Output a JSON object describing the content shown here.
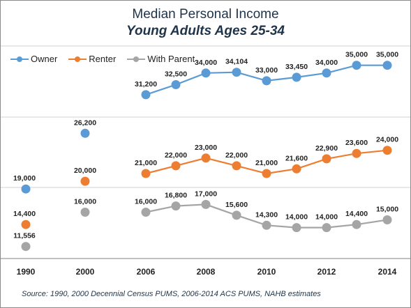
{
  "title": "Median Personal Income",
  "subtitle": "Young Adults Ages 25-34",
  "source": "Source: 1990, 2000 Decennial Census PUMS, 2006-2014 ACS PUMS, NAHB estimates",
  "colors": {
    "owner": "#5b9bd5",
    "renter": "#ed7d31",
    "with_parent": "#a5a5a5",
    "grid": "#d0d0d0",
    "axis": "#808080"
  },
  "chart_data": {
    "type": "line",
    "x": [
      "1990",
      "2000",
      "2006",
      "2007",
      "2008",
      "2009",
      "2010",
      "2011",
      "2012",
      "2013",
      "2014"
    ],
    "x_tick_labels": [
      "1990",
      "2000",
      "2006",
      "2008",
      "2010",
      "2012",
      "2014"
    ],
    "ylim": [
      10000,
      37500
    ],
    "grid": true,
    "legend_position": "top-left",
    "series": [
      {
        "name": "Owner",
        "color": "#5b9bd5",
        "values": [
          19000,
          26200,
          31200,
          32500,
          34000,
          34104,
          33000,
          33450,
          34000,
          35000,
          35000
        ],
        "labels": [
          "19,000",
          "26,200",
          "31,200",
          "32,500",
          "34,000",
          "34,104",
          "33,000",
          "33,450",
          "34,000",
          "35,000",
          "35,000"
        ]
      },
      {
        "name": "Renter",
        "color": "#ed7d31",
        "values": [
          14400,
          20000,
          21000,
          22000,
          23000,
          22000,
          21000,
          21600,
          22900,
          23600,
          24000
        ],
        "labels": [
          "14,400",
          "20,000",
          "21,000",
          "22,000",
          "23,000",
          "22,000",
          "21,000",
          "21,600",
          "22,900",
          "23,600",
          "24,000"
        ]
      },
      {
        "name": "With Parent",
        "color": "#a5a5a5",
        "values": [
          11556,
          16000,
          16000,
          16800,
          17000,
          15600,
          14300,
          14000,
          14000,
          14400,
          15000
        ],
        "labels": [
          "11,556",
          "16,000",
          "16,000",
          "16,800",
          "17,000",
          "15,600",
          "14,300",
          "14,000",
          "14,000",
          "14,400",
          "15,000"
        ]
      }
    ]
  }
}
